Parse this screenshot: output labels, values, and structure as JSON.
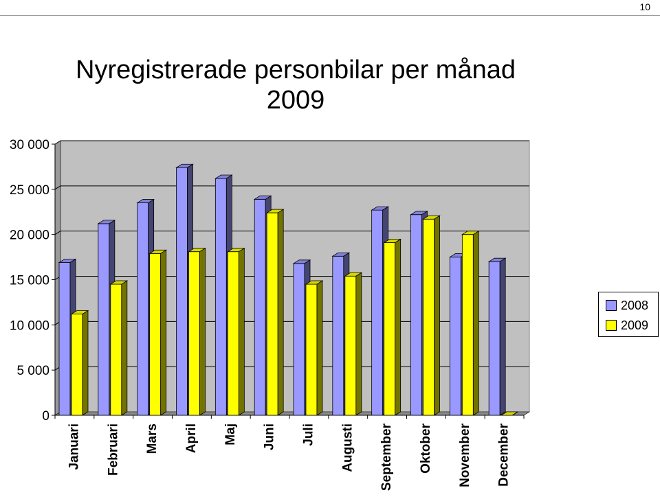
{
  "page": {
    "number": "10"
  },
  "chart_data": {
    "type": "bar",
    "title": "Nyregistrerade personbilar per månad",
    "subtitle": "2009",
    "categories": [
      "Januari",
      "Februari",
      "Mars",
      "April",
      "Maj",
      "Juni",
      "Juli",
      "Augusti",
      "September",
      "Oktober",
      "November",
      "December"
    ],
    "series": [
      {
        "name": "2008",
        "color": "#9999ff",
        "values": [
          16900,
          21200,
          23500,
          27400,
          26200,
          23900,
          16800,
          17600,
          22700,
          22200,
          17500,
          17000
        ]
      },
      {
        "name": "2009",
        "color": "#ffff00",
        "values": [
          11200,
          14500,
          17900,
          18100,
          18100,
          22400,
          14500,
          15400,
          19100,
          21700,
          20000,
          0
        ]
      }
    ],
    "yticks": [
      "0",
      "5 000",
      "10 000",
      "15 000",
      "20 000",
      "25 000",
      "30 000"
    ],
    "ylim": [
      0,
      30000
    ],
    "grid": true,
    "legend_position": "right",
    "plot_background": "#c0c0c0"
  }
}
